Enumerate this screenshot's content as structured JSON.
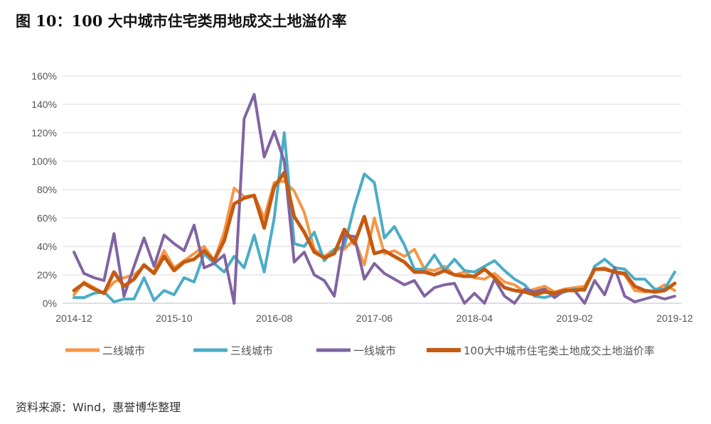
{
  "title": "图 10：100 大中城市住宅类用地成交土地溢价率",
  "source": "资料来源：Wind，惠誉博华整理",
  "chart_data": {
    "type": "line",
    "title": "图 10：100 大中城市住宅类用地成交土地溢价率",
    "xlabel": "",
    "ylabel": "",
    "ylim": [
      0,
      160
    ],
    "y_ticks": [
      "0%",
      "20%",
      "40%",
      "60%",
      "80%",
      "100%",
      "120%",
      "140%",
      "160%"
    ],
    "x_tick_labels": [
      "2014-12",
      "2015-10",
      "2016-08",
      "2017-06",
      "2018-04",
      "2019-02",
      "2019-12"
    ],
    "x_tick_index": [
      0,
      10,
      20,
      30,
      40,
      50,
      60
    ],
    "grid": true,
    "legend_position": "bottom",
    "series": [
      {
        "name": "二线城市",
        "color": "#F79646",
        "width": 4,
        "values": [
          6,
          15,
          11,
          7,
          15,
          18,
          20,
          26,
          22,
          37,
          25,
          30,
          35,
          40,
          30,
          50,
          81,
          75,
          76,
          60,
          85,
          86,
          79,
          64,
          38,
          33,
          38,
          38,
          45,
          27,
          60,
          35,
          37,
          33,
          38,
          24,
          23,
          26,
          20,
          22,
          18,
          17,
          21,
          15,
          13,
          8,
          10,
          12,
          8,
          10,
          11,
          12,
          24,
          25,
          22,
          20,
          9,
          8,
          9,
          13,
          9
        ]
      },
      {
        "name": "三线城市",
        "color": "#4BACC6",
        "width": 4,
        "values": [
          4,
          4,
          7,
          8,
          1,
          3,
          3,
          18,
          2,
          9,
          6,
          18,
          15,
          35,
          28,
          22,
          33,
          25,
          48,
          22,
          60,
          120,
          42,
          40,
          50,
          30,
          38,
          40,
          68,
          91,
          85,
          46,
          54,
          41,
          24,
          24,
          34,
          23,
          31,
          23,
          22,
          26,
          30,
          23,
          17,
          13,
          5,
          4,
          6,
          8,
          10,
          9,
          26,
          31,
          25,
          24,
          17,
          17,
          10,
          10,
          22
        ]
      },
      {
        "name": "一线城市",
        "color": "#8064A2",
        "width": 4,
        "values": [
          36,
          21,
          18,
          16,
          49,
          5,
          26,
          46,
          26,
          48,
          42,
          37,
          55,
          25,
          28,
          34,
          0,
          130,
          147,
          103,
          121,
          100,
          29,
          36,
          20,
          16,
          5,
          48,
          47,
          17,
          28,
          21,
          17,
          13,
          16,
          5,
          11,
          13,
          14,
          0,
          7,
          0,
          17,
          5,
          0,
          10,
          8,
          10,
          4,
          9,
          9,
          0,
          16,
          6,
          25,
          5,
          1,
          3,
          5,
          3,
          5
        ]
      },
      {
        "name": "100大中城市住宅类土地成交土地溢价率",
        "color": "#C55A11",
        "width": 5,
        "values": [
          9,
          14,
          10,
          7,
          22,
          12,
          17,
          27,
          21,
          33,
          23,
          29,
          31,
          37,
          30,
          44,
          70,
          74,
          76,
          53,
          82,
          92,
          61,
          50,
          36,
          32,
          35,
          52,
          42,
          61,
          35,
          37,
          33,
          29,
          22,
          22,
          20,
          23,
          20,
          19,
          19,
          24,
          18,
          11,
          9,
          8,
          6,
          8,
          7,
          9,
          9,
          10,
          24,
          24,
          22,
          21,
          12,
          9,
          8,
          9,
          14
        ]
      }
    ]
  }
}
